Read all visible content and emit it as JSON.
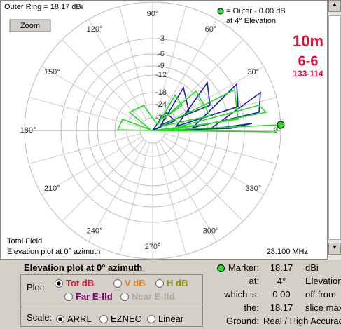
{
  "plot": {
    "outer_ring": "Outer Ring = 18.17 dBi",
    "zoom": "Zoom",
    "legend_line1": "= Outer - 0.00 dB",
    "legend_line2": "at 4° Elevation",
    "band": "10m",
    "antenna": "6-6",
    "heights": "133-114",
    "angle_labels": [
      "0°",
      "30°",
      "60°",
      "90°",
      "120°",
      "150°",
      "180°",
      "210°",
      "240°",
      "270°",
      "300°",
      "330°"
    ],
    "ring_labels": [
      "-3",
      "-6",
      "-9",
      "-12",
      "-18",
      "-24",
      "-36"
    ],
    "field": "Total Field",
    "plot_desc": "Elevation plot at 0° azimuth",
    "frequency": "28.100 MHz"
  },
  "panel": {
    "title": "Elevation plot at 0° azimuth",
    "plot_label": "Plot:",
    "plot_options": [
      "Tot dB",
      "V dB",
      "H dB",
      "Far E-fld",
      "Near E-fld"
    ],
    "scale_label": "Scale:",
    "scale_options": [
      "ARRL",
      "EZNEC",
      "Linear"
    ],
    "info": [
      [
        "Marker:",
        "18.17",
        "dBi"
      ],
      [
        "at:",
        "4°",
        "Elevation"
      ],
      [
        "which is:",
        "0.00",
        "off from"
      ],
      [
        "the:",
        "18.17",
        "slice max"
      ]
    ],
    "ground_label": "Ground:",
    "ground": "Real / High Accuracy"
  }
}
